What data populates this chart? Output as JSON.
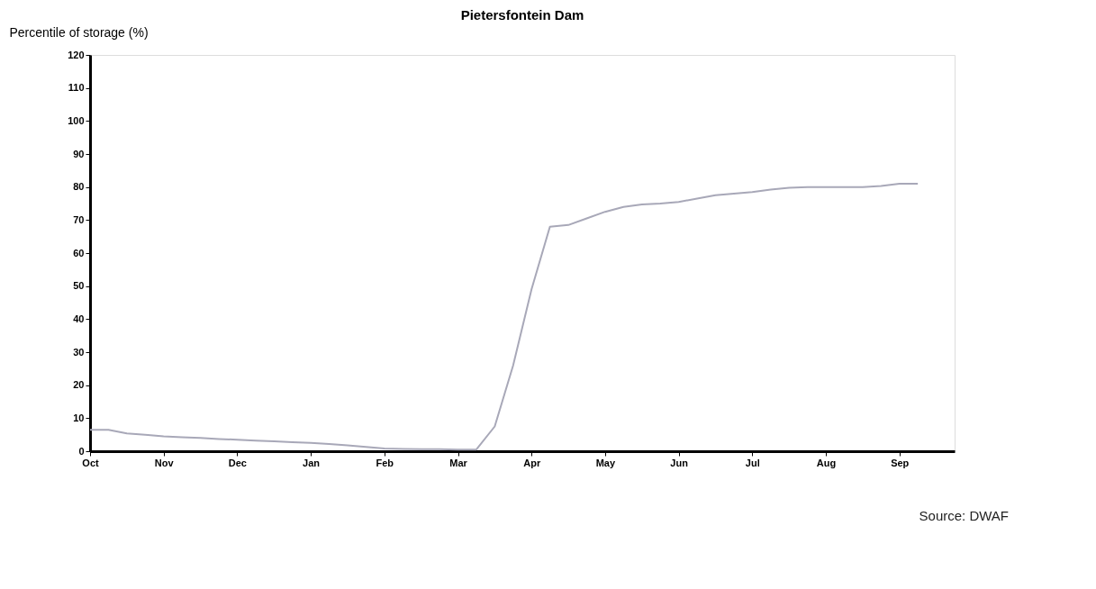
{
  "chart_data": {
    "type": "line",
    "title": "Pietersfontein Dam",
    "ylabel": "Percentile  of storage (%)",
    "categories": [
      "Oct",
      null,
      null,
      null,
      "Nov",
      null,
      null,
      null,
      "Dec",
      null,
      null,
      null,
      "Jan",
      null,
      null,
      null,
      "Feb",
      null,
      null,
      null,
      "Mar",
      null,
      null,
      null,
      "Apr",
      null,
      null,
      null,
      "May",
      null,
      null,
      null,
      "Jun",
      null,
      null,
      null,
      "Jul",
      null,
      null,
      null,
      "Aug",
      null,
      null,
      null,
      "Sep",
      null,
      null,
      null
    ],
    "series": [
      {
        "color": "#a8a8b8",
        "values": [
          6.5,
          6.5,
          5.4,
          5.0,
          4.5,
          4.2,
          4.0,
          3.7,
          3.5,
          3.2,
          3.0,
          2.7,
          2.5,
          2.2,
          1.8,
          1.3,
          0.8,
          0.7,
          0.6,
          0.6,
          0.5,
          0.5,
          7.5,
          26,
          49,
          68,
          68.5,
          70.5,
          72.5,
          74,
          74.7,
          75,
          75.5,
          76.5,
          77.5,
          78,
          78.5,
          79.2,
          79.8,
          80,
          80,
          80,
          80,
          80.3,
          81,
          81,
          null,
          null
        ]
      }
    ],
    "ylim": [
      0,
      120
    ],
    "yticks": [
      0,
      10,
      20,
      30,
      40,
      50,
      60,
      70,
      80,
      90,
      100,
      110,
      120
    ],
    "grid": false,
    "marker": "none",
    "line_style": "solid",
    "annotations": [
      "Source: DWAF"
    ]
  }
}
